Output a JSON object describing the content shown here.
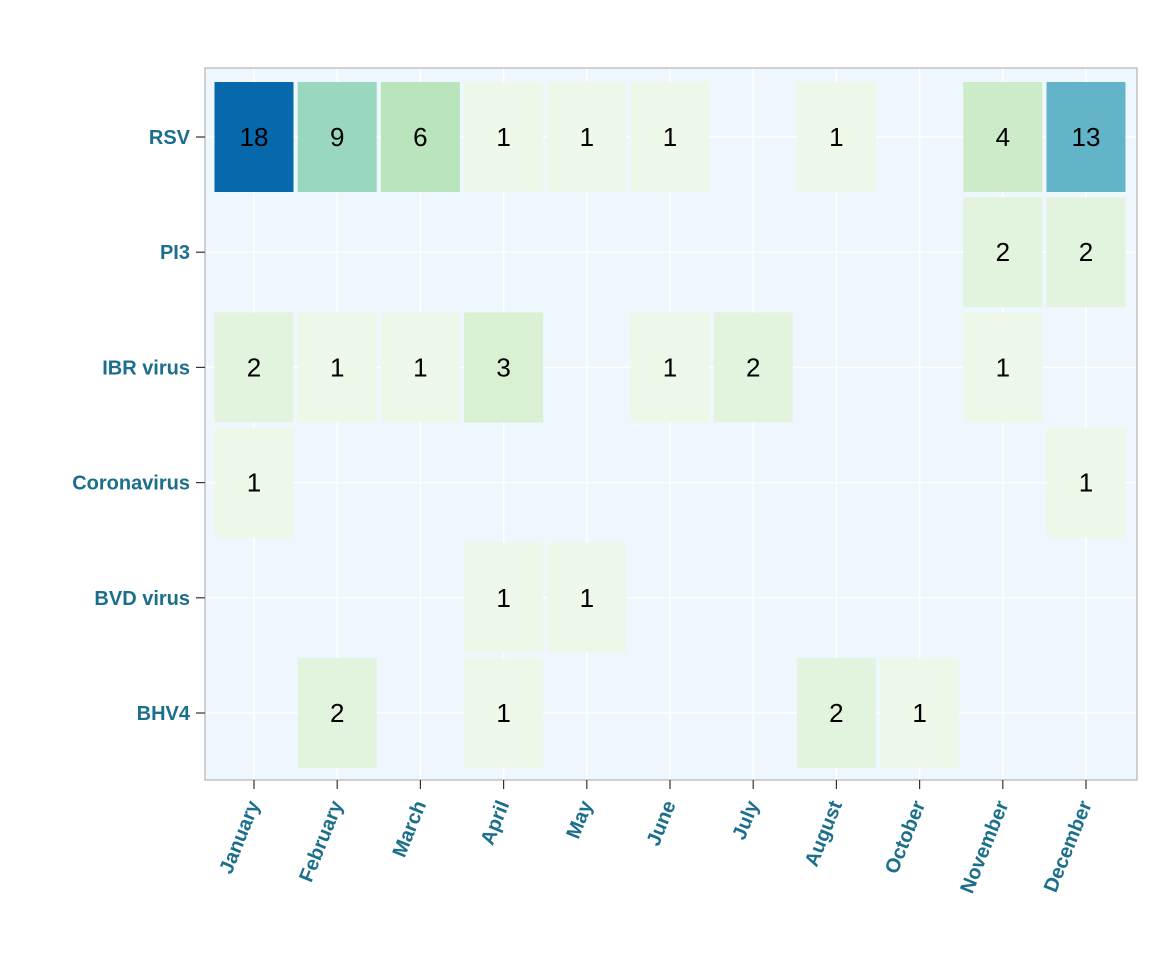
{
  "chart_data": {
    "type": "heatmap",
    "title": "",
    "xlabel": "",
    "ylabel": "",
    "x_categories": [
      "January",
      "February",
      "March",
      "April",
      "May",
      "June",
      "July",
      "August",
      "October",
      "November",
      "December"
    ],
    "y_categories": [
      "RSV",
      "PI3",
      "IBR virus",
      "Coronavirus",
      "BVD virus",
      "BHV4"
    ],
    "cells": [
      {
        "y": "RSV",
        "x": "January",
        "value": 18
      },
      {
        "y": "RSV",
        "x": "February",
        "value": 9
      },
      {
        "y": "RSV",
        "x": "March",
        "value": 6
      },
      {
        "y": "RSV",
        "x": "April",
        "value": 1
      },
      {
        "y": "RSV",
        "x": "May",
        "value": 1
      },
      {
        "y": "RSV",
        "x": "June",
        "value": 1
      },
      {
        "y": "RSV",
        "x": "August",
        "value": 1
      },
      {
        "y": "RSV",
        "x": "November",
        "value": 4
      },
      {
        "y": "RSV",
        "x": "December",
        "value": 13
      },
      {
        "y": "PI3",
        "x": "November",
        "value": 2
      },
      {
        "y": "PI3",
        "x": "December",
        "value": 2
      },
      {
        "y": "IBR virus",
        "x": "January",
        "value": 2
      },
      {
        "y": "IBR virus",
        "x": "February",
        "value": 1
      },
      {
        "y": "IBR virus",
        "x": "March",
        "value": 1
      },
      {
        "y": "IBR virus",
        "x": "April",
        "value": 3
      },
      {
        "y": "IBR virus",
        "x": "June",
        "value": 1
      },
      {
        "y": "IBR virus",
        "x": "July",
        "value": 2
      },
      {
        "y": "IBR virus",
        "x": "November",
        "value": 1
      },
      {
        "y": "Coronavirus",
        "x": "January",
        "value": 1
      },
      {
        "y": "Coronavirus",
        "x": "December",
        "value": 1
      },
      {
        "y": "BVD virus",
        "x": "April",
        "value": 1
      },
      {
        "y": "BVD virus",
        "x": "May",
        "value": 1
      },
      {
        "y": "BHV4",
        "x": "February",
        "value": 2
      },
      {
        "y": "BHV4",
        "x": "April",
        "value": 1
      },
      {
        "y": "BHV4",
        "x": "August",
        "value": 2
      },
      {
        "y": "BHV4",
        "x": "October",
        "value": 1
      }
    ],
    "color_scale": {
      "1": "#edf8e8",
      "2": "#e2f4dd",
      "3": "#d9f0d3",
      "4": "#ccebc8",
      "6": "#bae4bc",
      "9": "#99d8bf",
      "13": "#63b4c9",
      "18": "#0868ac"
    },
    "grid": true,
    "legend": "none"
  },
  "colors": {
    "panel_background": "#eef6fe",
    "panel_border": "#b3b3b3",
    "grid": "#ffffff",
    "label": "#1b6e8c",
    "text": "#000000"
  }
}
